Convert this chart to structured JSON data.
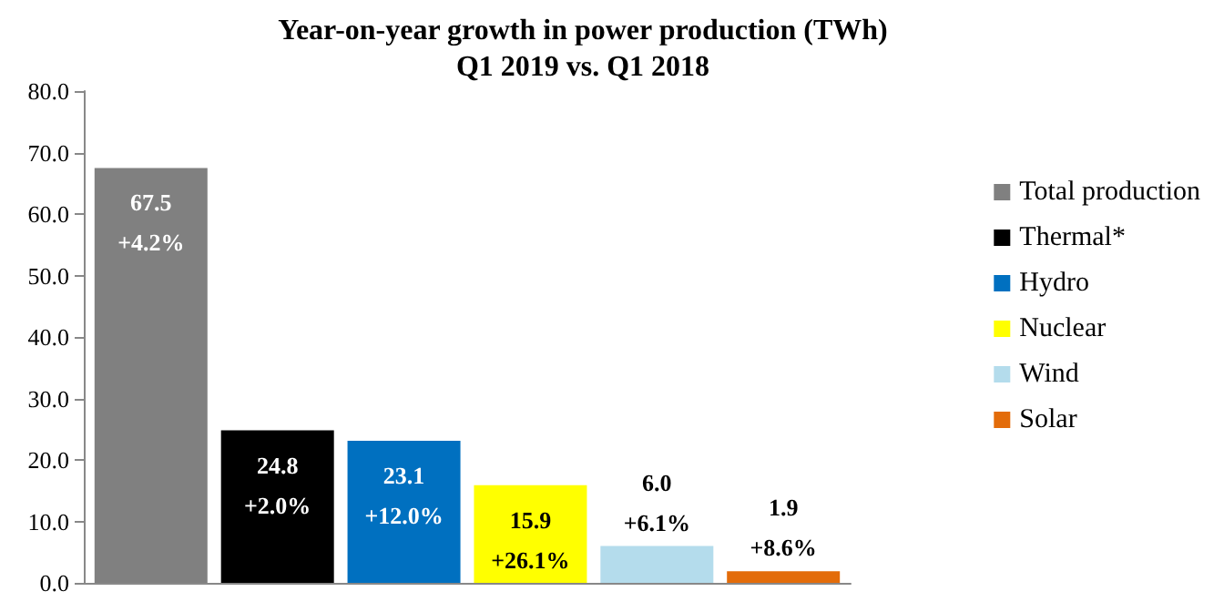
{
  "chart_data": {
    "type": "bar",
    "title": "Year-on-year growth in power production (TWh)\nQ1 2019 vs. Q1 2018",
    "categories": [
      null
    ],
    "series": [
      {
        "name": "Total production",
        "color": "#808080",
        "values": [
          67.5
        ],
        "value_labels": [
          "67.5\n+4.2%"
        ]
      },
      {
        "name": "Thermal*",
        "color": "#000000",
        "values": [
          24.8
        ],
        "value_labels": [
          "24.8\n+2.0%"
        ]
      },
      {
        "name": "Hydro",
        "color": "#0070c0",
        "values": [
          23.1
        ],
        "value_labels": [
          "23.1\n+12.0%"
        ]
      },
      {
        "name": "Nuclear",
        "color": "#ffff00",
        "values": [
          15.9
        ],
        "value_labels": [
          "15.9\n+26.1%"
        ]
      },
      {
        "name": "Wind",
        "color": "#b4dcec",
        "values": [
          6.0
        ],
        "value_labels": [
          "6.0\n+6.1%"
        ]
      },
      {
        "name": "Solar",
        "color": "#e36c0a",
        "values": [
          1.9
        ],
        "value_labels": [
          "1.9\n+8.6%"
        ]
      }
    ],
    "ylim": [
      0,
      80
    ],
    "yticks": [
      {
        "value": 0,
        "label": "0.0"
      },
      {
        "value": 10,
        "label": "10.0"
      },
      {
        "value": 20,
        "label": "20.0"
      },
      {
        "value": 30,
        "label": "30.0"
      },
      {
        "value": 40,
        "label": "40.0"
      },
      {
        "value": 50,
        "label": "50.0"
      },
      {
        "value": 60,
        "label": "60.0"
      },
      {
        "value": 70,
        "label": "70.0"
      },
      {
        "value": 80,
        "label": "80.0"
      }
    ],
    "grid": false,
    "legend": "right"
  }
}
